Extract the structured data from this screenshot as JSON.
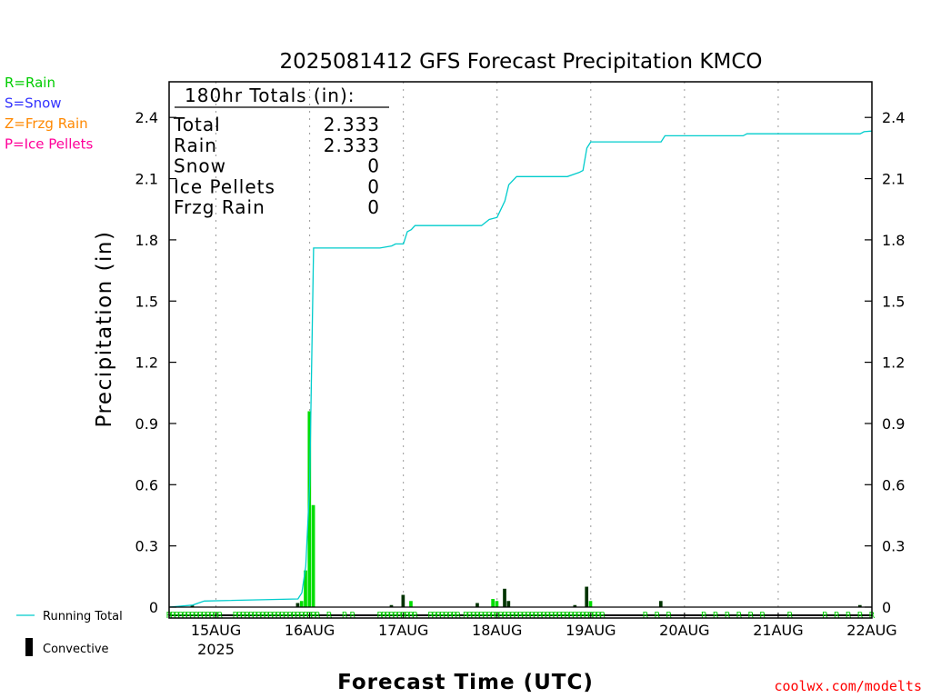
{
  "chart_data": {
    "type": "bar",
    "title": "2025081412 GFS Forecast Precipitation KMCO",
    "xlabel": "Forecast Time (UTC)",
    "ylabel": "Precipitation (in)",
    "ylim": [
      0,
      2.55
    ],
    "y_ticks": [
      "0",
      "0.3",
      "0.6",
      "0.9",
      "1.2",
      "1.5",
      "1.8",
      "2.1",
      "2.4"
    ],
    "x_unit_hours_from": "2025081412",
    "xlim_hours": [
      0,
      180
    ],
    "x_ticks": [
      {
        "label": "15AUG",
        "sub": "2025",
        "hour": 12
      },
      {
        "label": "16AUG",
        "sub": "",
        "hour": 36
      },
      {
        "label": "17AUG",
        "sub": "",
        "hour": 60
      },
      {
        "label": "18AUG",
        "sub": "",
        "hour": 84
      },
      {
        "label": "19AUG",
        "sub": "",
        "hour": 108
      },
      {
        "label": "20AUG",
        "sub": "",
        "hour": 132
      },
      {
        "label": "21AUG",
        "sub": "",
        "hour": 156
      },
      {
        "label": "22AUG",
        "sub": "",
        "hour": 180
      }
    ],
    "grid": "vertical-dotted",
    "legend_precip_types": [
      {
        "text": "R=Rain",
        "color": "#00cc00"
      },
      {
        "text": "S=Snow",
        "color": "#3333ff"
      },
      {
        "text": "Z=Frzg Rain",
        "color": "#ff8800"
      },
      {
        "text": "P=Ice Pellets",
        "color": "#ff0099"
      }
    ],
    "legend_series": {
      "running_total": "Running Total",
      "convective": "Convective"
    },
    "totals_box": {
      "header": "180hr Totals (in):",
      "rows": [
        {
          "label": "Total",
          "value": "2.333"
        },
        {
          "label": "Rain",
          "value": "2.333"
        },
        {
          "label": "Snow",
          "value": "0"
        },
        {
          "label": "Ice Pellets",
          "value": "0"
        },
        {
          "label": "Frzg Rain",
          "value": "0"
        }
      ]
    },
    "precip_bars": [
      {
        "hour": 6,
        "value": 0.01,
        "convective": true
      },
      {
        "hour": 33,
        "value": 0.02,
        "convective": true
      },
      {
        "hour": 34,
        "value": 0.03,
        "convective": false
      },
      {
        "hour": 35,
        "value": 0.18,
        "convective": false
      },
      {
        "hour": 36,
        "value": 0.96,
        "convective": false
      },
      {
        "hour": 37,
        "value": 0.5,
        "convective": false
      },
      {
        "hour": 57,
        "value": 0.01,
        "convective": true
      },
      {
        "hour": 60,
        "value": 0.06,
        "convective": true
      },
      {
        "hour": 62,
        "value": 0.03,
        "convective": false
      },
      {
        "hour": 79,
        "value": 0.02,
        "convective": true
      },
      {
        "hour": 83,
        "value": 0.04,
        "convective": false
      },
      {
        "hour": 84,
        "value": 0.03,
        "convective": false
      },
      {
        "hour": 86,
        "value": 0.09,
        "convective": true
      },
      {
        "hour": 87,
        "value": 0.03,
        "convective": true
      },
      {
        "hour": 104,
        "value": 0.01,
        "convective": true
      },
      {
        "hour": 107,
        "value": 0.1,
        "convective": true
      },
      {
        "hour": 108,
        "value": 0.03,
        "convective": false
      },
      {
        "hour": 126,
        "value": 0.03,
        "convective": true
      },
      {
        "hour": 177,
        "value": 0.01,
        "convective": true
      }
    ],
    "running_total": {
      "hours": [
        0,
        6,
        9,
        33,
        34,
        35,
        36,
        37,
        38,
        54,
        57,
        58,
        60,
        61,
        62,
        63,
        75,
        78,
        80,
        82,
        84,
        85,
        86,
        87,
        89,
        101,
        102,
        105,
        106,
        107,
        108,
        109,
        126,
        127,
        128,
        147,
        148,
        169,
        170,
        177,
        178,
        180
      ],
      "values": [
        0,
        0.01,
        0.03,
        0.04,
        0.07,
        0.2,
        0.6,
        1.76,
        1.76,
        1.76,
        1.77,
        1.78,
        1.78,
        1.84,
        1.85,
        1.87,
        1.87,
        1.87,
        1.87,
        1.9,
        1.91,
        1.95,
        1.99,
        2.07,
        2.11,
        2.11,
        2.11,
        2.13,
        2.14,
        2.25,
        2.28,
        2.28,
        2.28,
        2.31,
        2.31,
        2.31,
        2.32,
        2.32,
        2.32,
        2.32,
        2.33,
        2.333
      ]
    },
    "precip_type_markers": {
      "symbol": "R",
      "hours": [
        0,
        1,
        2,
        3,
        4,
        5,
        6,
        7,
        8,
        9,
        10,
        11,
        12,
        13,
        17,
        18,
        19,
        20,
        21,
        22,
        23,
        24,
        25,
        26,
        27,
        28,
        29,
        30,
        31,
        32,
        33,
        34,
        35,
        36,
        37,
        38,
        41,
        45,
        47,
        54,
        55,
        56,
        57,
        58,
        59,
        60,
        61,
        62,
        63,
        67,
        68,
        69,
        70,
        71,
        72,
        73,
        74,
        76,
        77,
        78,
        79,
        80,
        81,
        82,
        83,
        84,
        85,
        86,
        87,
        88,
        89,
        90,
        91,
        92,
        93,
        94,
        95,
        96,
        97,
        98,
        99,
        100,
        101,
        102,
        103,
        104,
        105,
        106,
        107,
        108,
        109,
        110,
        111,
        122,
        125,
        128,
        137,
        140,
        143,
        146,
        149,
        152,
        159,
        168,
        171,
        174,
        177,
        180
      ]
    }
  },
  "credit": "coolwx.com/modelts"
}
